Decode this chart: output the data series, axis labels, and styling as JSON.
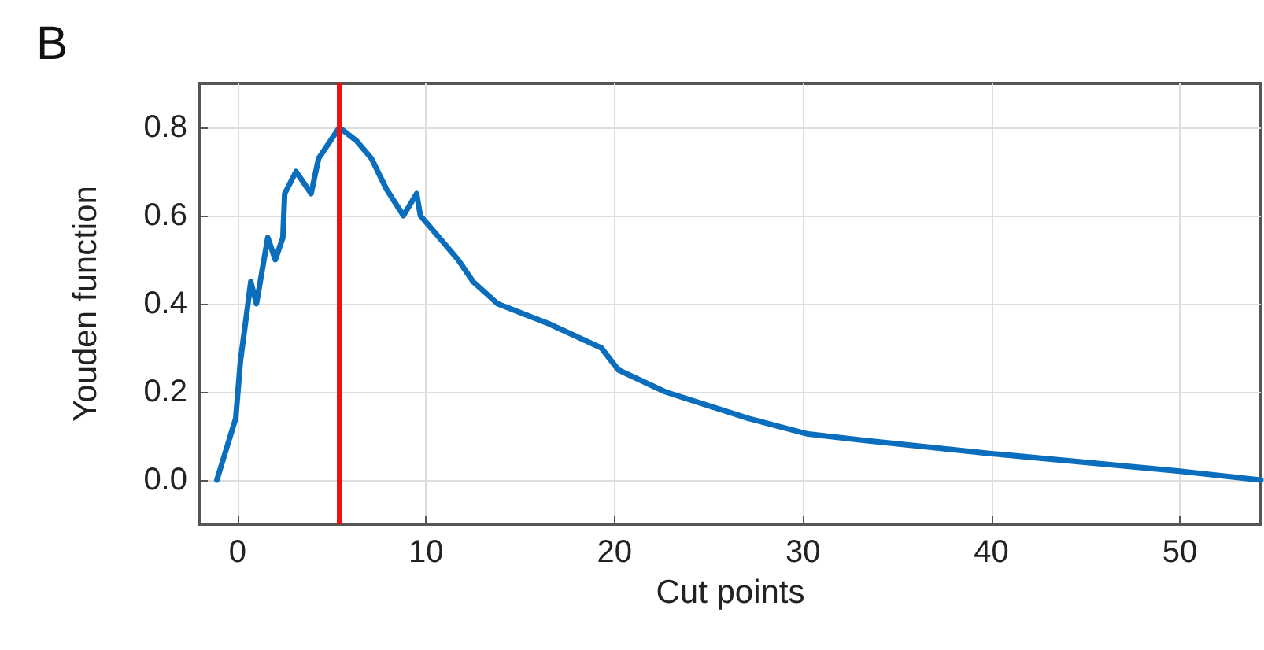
{
  "chart_data": {
    "type": "line",
    "title": "B",
    "xlabel": "Cut points",
    "ylabel": "Youden function",
    "x": [
      -1.1,
      -0.1,
      0.15,
      0.55,
      0.7,
      1.0,
      1.6,
      2.0,
      2.4,
      2.5,
      3.1,
      3.9,
      4.3,
      5.4,
      6.3,
      7.1,
      7.9,
      8.8,
      9.5,
      9.7,
      10.4,
      11.7,
      12.5,
      13.8,
      16.5,
      19.3,
      20.2,
      22.7,
      27.1,
      30.2,
      33.2,
      40,
      50,
      54.3
    ],
    "series": [
      {
        "color": "#0a6ebd",
        "values": [
          0.0,
          0.14,
          0.27,
          0.4,
          0.45,
          0.4,
          0.55,
          0.5,
          0.55,
          0.65,
          0.7,
          0.65,
          0.73,
          0.8,
          0.77,
          0.73,
          0.66,
          0.6,
          0.65,
          0.6,
          0.565,
          0.5,
          0.45,
          0.4,
          0.355,
          0.3,
          0.25,
          0.2,
          0.14,
          0.105,
          0.09,
          0.06,
          0.02,
          0.0
        ]
      }
    ],
    "xlim": [
      -2,
      54.3
    ],
    "ylim": [
      -0.1,
      0.9
    ],
    "xticks": [
      0,
      10,
      20,
      30,
      40,
      50
    ],
    "yticks": [
      {
        "value": 0,
        "label": "0.0"
      },
      0.2,
      0.4,
      0.6,
      0.8
    ],
    "ref_lines": [
      {
        "axis": "x",
        "value": 5.4,
        "color": "#ee1111"
      }
    ],
    "grid": true,
    "marker": "none",
    "line_style": "solid"
  }
}
